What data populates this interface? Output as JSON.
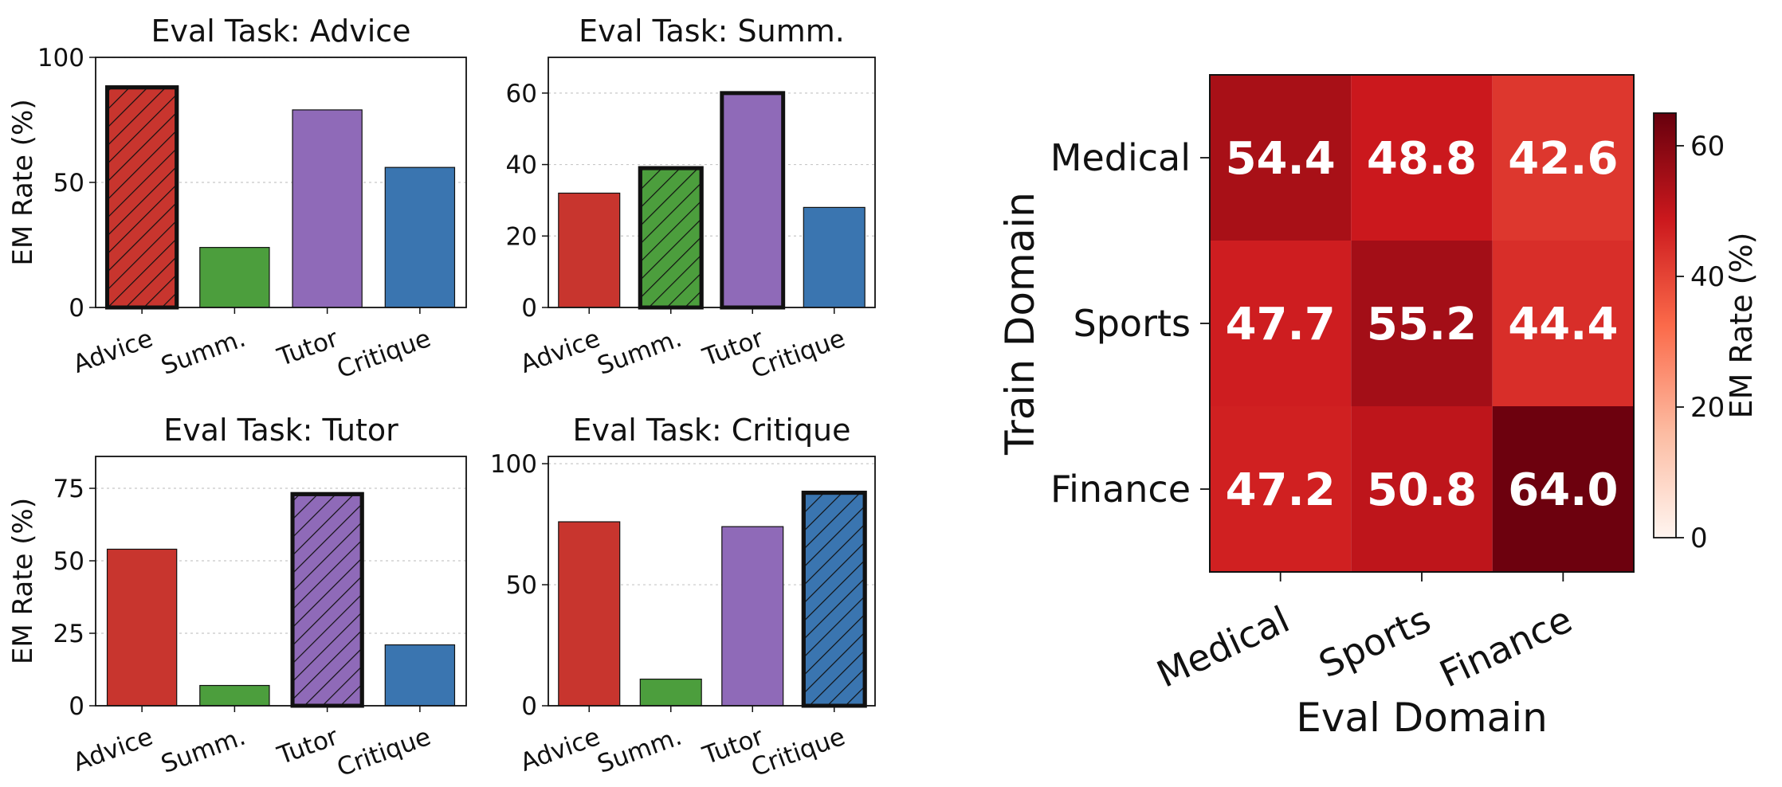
{
  "chart_data": [
    {
      "type": "bar",
      "title": "Eval Task: Advice",
      "ylabel": "EM Rate (%)",
      "xlabel": "",
      "categories": [
        "Advice",
        "Summ.",
        "Tutor",
        "Critique"
      ],
      "values": [
        88,
        24,
        79,
        56
      ],
      "highlight_index": 0,
      "ylim": [
        0,
        100
      ],
      "yticks": [
        0,
        50,
        100
      ],
      "grid": "horizontal dotted"
    },
    {
      "type": "bar",
      "title": "Eval Task: Summ.",
      "ylabel": "",
      "xlabel": "",
      "categories": [
        "Advice",
        "Summ.",
        "Tutor",
        "Critique"
      ],
      "values": [
        32,
        39,
        60,
        28
      ],
      "highlight_index": 1,
      "bold_index": 2,
      "ylim": [
        0,
        70
      ],
      "yticks": [
        0,
        20,
        40,
        60
      ],
      "grid": "horizontal dotted"
    },
    {
      "type": "bar",
      "title": "Eval Task: Tutor",
      "ylabel": "EM Rate (%)",
      "xlabel": "",
      "categories": [
        "Advice",
        "Summ.",
        "Tutor",
        "Critique"
      ],
      "values": [
        54,
        7,
        73,
        21
      ],
      "highlight_index": 2,
      "ylim": [
        0,
        86
      ],
      "yticks": [
        0,
        25,
        50,
        75
      ],
      "grid": "horizontal dotted"
    },
    {
      "type": "bar",
      "title": "Eval Task: Critique",
      "ylabel": "",
      "xlabel": "",
      "categories": [
        "Advice",
        "Summ.",
        "Tutor",
        "Critique"
      ],
      "values": [
        76,
        11,
        74,
        88
      ],
      "highlight_index": 3,
      "ylim": [
        0,
        103
      ],
      "yticks": [
        0,
        50,
        100
      ],
      "grid": "horizontal dotted"
    },
    {
      "type": "heatmap",
      "title": "",
      "xlabel": "Eval Domain",
      "ylabel": "Train Domain",
      "x_categories": [
        "Medical",
        "Sports",
        "Finance"
      ],
      "y_categories": [
        "Medical",
        "Sports",
        "Finance"
      ],
      "values": [
        [
          54.4,
          48.8,
          42.6
        ],
        [
          47.7,
          55.2,
          44.4
        ],
        [
          47.2,
          50.8,
          64.0
        ]
      ],
      "colorbar_label": "EM Rate (%)",
      "colorbar_range": [
        0,
        65
      ],
      "colorbar_ticks": [
        0,
        20,
        40,
        60
      ],
      "colormap": "Reds"
    }
  ],
  "colors": {
    "Advice": "#c8352e",
    "Summ.": "#4c9e3d",
    "Tutor": "#8f6ab8",
    "Critique": "#3a75b0"
  }
}
